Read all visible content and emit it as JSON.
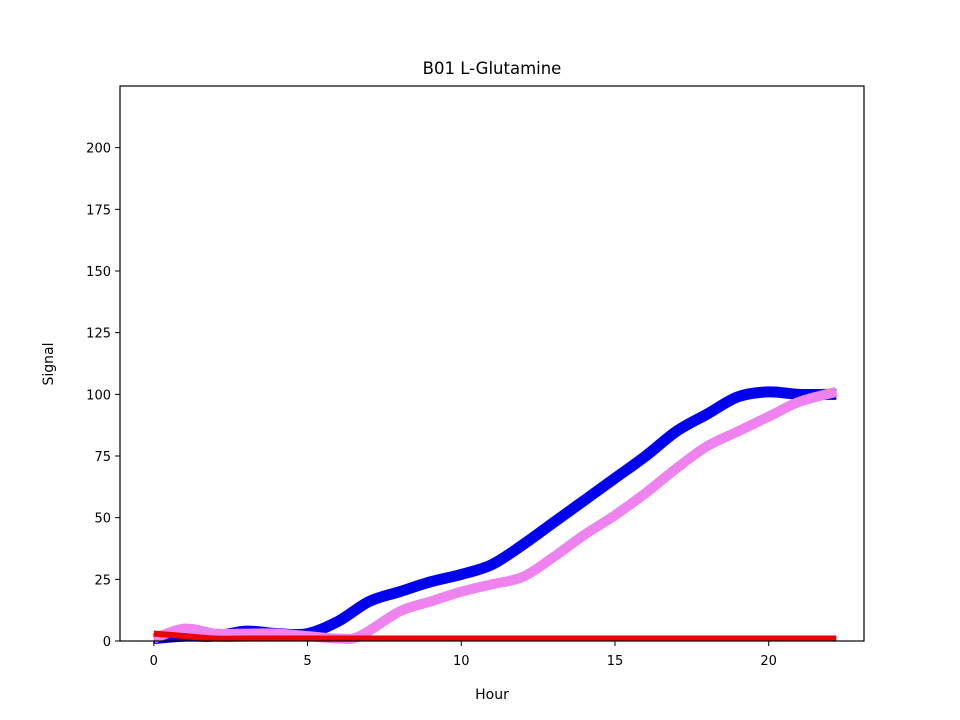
{
  "chart_data": {
    "type": "line",
    "title": "B01 L-Glutamine",
    "xlabel": "Hour",
    "ylabel": "Signal",
    "xlim": [
      -1.1,
      23.1
    ],
    "ylim": [
      0,
      225
    ],
    "xticks": [
      0,
      5,
      10,
      15,
      20
    ],
    "yticks": [
      0,
      25,
      50,
      75,
      100,
      125,
      150,
      175,
      200
    ],
    "grid": false,
    "series": [
      {
        "color": "#0000ee",
        "x": [
          0,
          1,
          2,
          3,
          4,
          5,
          6,
          7,
          8,
          9,
          10,
          11,
          12,
          13,
          14,
          15,
          16,
          17,
          18,
          19,
          20,
          21,
          22.2
        ],
        "y": [
          1,
          2,
          2,
          4,
          3,
          3,
          8,
          16,
          20,
          24,
          27,
          31,
          39,
          48,
          57,
          66,
          75,
          85,
          92,
          99,
          101,
          100,
          100
        ]
      },
      {
        "color": "#ee82ee",
        "x": [
          0,
          1,
          2,
          3,
          4,
          5,
          6,
          6.7,
          8,
          9,
          10,
          11,
          12,
          13,
          14,
          15,
          16,
          17,
          18,
          19,
          20,
          21,
          22.2
        ],
        "y": [
          1,
          5,
          3,
          3,
          3,
          2,
          1,
          2,
          12,
          16,
          20,
          23,
          26,
          34,
          43,
          51,
          60,
          70,
          79,
          85,
          91,
          97,
          101
        ]
      },
      {
        "color": "#ee0000",
        "x": [
          0,
          1,
          2,
          3,
          4,
          5,
          6,
          7,
          8,
          10,
          12,
          14,
          16,
          18,
          20,
          22.2
        ],
        "y": [
          3,
          2,
          1,
          1,
          1,
          1,
          1,
          1,
          1,
          1,
          1,
          1,
          1,
          1,
          1,
          1
        ]
      }
    ]
  }
}
